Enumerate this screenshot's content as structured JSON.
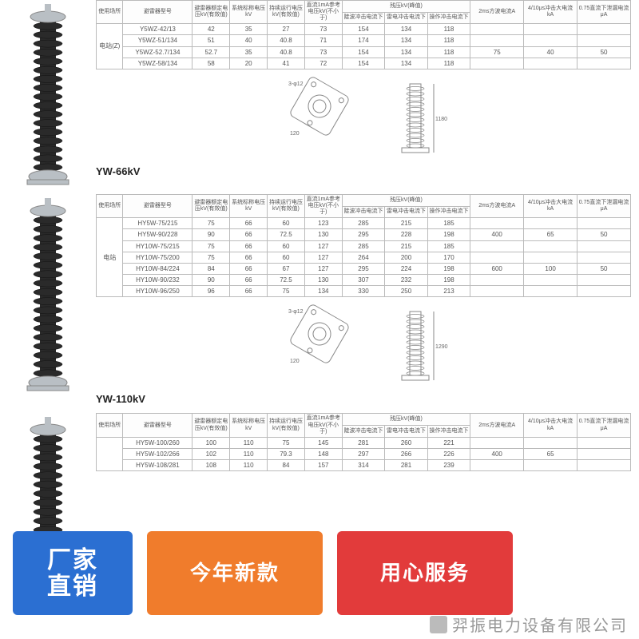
{
  "colors": {
    "badge_blue": "#2b6fd2",
    "badge_orange": "#f07c2c",
    "badge_red": "#e23b3b",
    "table_border": "#bbbbbb",
    "text_muted": "#555555",
    "footer_gray": "#999999",
    "arrester_body": "#2a2a2a",
    "arrester_metal": "#b9bfc4"
  },
  "badges": [
    {
      "l1": "厂家",
      "l2": "直销",
      "color_key": "badge_blue"
    },
    {
      "l1": "今年新款",
      "l2": "",
      "color_key": "badge_orange"
    },
    {
      "l1": "用心服务",
      "l2": "",
      "color_key": "badge_red"
    }
  ],
  "footer_company": "羿振电力设备有限公司",
  "sections": [
    {
      "label": "",
      "arrester_height": 230,
      "columns_super": [
        "使用场所",
        "避雷器型号",
        "避雷器额定电压kV(有效值)",
        "系统标称电压kV",
        "持续运行电压kV(有效值)",
        "直流1mA参考电压kV(不小于)",
        "残压kV(峰值)",
        "2ms方波电流A",
        "4/10μs冲击大电流kA",
        "0.75直流下泄漏电流μA"
      ],
      "columns_sub": [
        "",
        "",
        "",
        "",
        "",
        "",
        "陡波冲击电流下",
        "雷电冲击电流下",
        "操作冲击电流下",
        "",
        "",
        ""
      ],
      "group_label": "电站(Z)",
      "rows": [
        [
          "Y5WZ-42/13",
          "42",
          "35",
          "27",
          "73",
          "154",
          "134",
          "118",
          "",
          "",
          ""
        ],
        [
          "Y5WZ-51/134",
          "51",
          "40",
          "40.8",
          "71",
          "174",
          "134",
          "118",
          "",
          "",
          ""
        ],
        [
          "Y5WZ-52.7/134",
          "52.7",
          "35",
          "40.8",
          "73",
          "154",
          "134",
          "118",
          "75",
          "40",
          "50"
        ],
        [
          "Y5WZ-58/134",
          "58",
          "20",
          "41",
          "72",
          "154",
          "134",
          "118",
          "",
          "",
          ""
        ]
      ],
      "diagram": {
        "base_w": 120,
        "height_label": "1180",
        "base_label": "3-φ12"
      }
    },
    {
      "label": "YW-66kV",
      "arrester_height": 245,
      "columns_super": [
        "使用场所",
        "避雷器型号",
        "避雷器额定电压kV(有效值)",
        "系统标称电压kV",
        "持续运行电压kV(有效值)",
        "直流1mA参考电压kV(不小于)",
        "残压kV(峰值)",
        "2ms方波电流A",
        "4/10μs冲击大电流kA",
        "0.75直流下泄漏电流μA"
      ],
      "columns_sub": [
        "",
        "",
        "",
        "",
        "",
        "",
        "陡波冲击电流下",
        "雷电冲击电流下",
        "操作冲击电流下",
        "",
        "",
        ""
      ],
      "group_label": "电站",
      "rows": [
        [
          "HY5W-75/215",
          "75",
          "66",
          "60",
          "123",
          "285",
          "215",
          "185",
          "",
          "",
          ""
        ],
        [
          "HY5W-90/228",
          "90",
          "66",
          "72.5",
          "130",
          "295",
          "228",
          "198",
          "400",
          "65",
          "50"
        ],
        [
          "HY10W-75/215",
          "75",
          "66",
          "60",
          "127",
          "285",
          "215",
          "185",
          "",
          "",
          ""
        ],
        [
          "HY10W-75/200",
          "75",
          "66",
          "60",
          "127",
          "264",
          "200",
          "170",
          "",
          "",
          ""
        ],
        [
          "HY10W-84/224",
          "84",
          "66",
          "67",
          "127",
          "295",
          "224",
          "198",
          "600",
          "100",
          "50"
        ],
        [
          "HY10W-90/232",
          "90",
          "66",
          "72.5",
          "130",
          "307",
          "232",
          "198",
          "",
          "",
          ""
        ],
        [
          "HY10W-96/250",
          "96",
          "66",
          "75",
          "134",
          "330",
          "250",
          "213",
          "",
          "",
          ""
        ]
      ],
      "diagram": {
        "base_w": 120,
        "height_label": "1290",
        "base_label": "3-φ12"
      }
    },
    {
      "label": "YW-110kV",
      "arrester_height": 190,
      "columns_super": [
        "使用场所",
        "避雷器型号",
        "避雷器额定电压kV(有效值)",
        "系统标称电压kV",
        "持续运行电压kV(有效值)",
        "直流1mA参考电压kV(不小于)",
        "残压kV(峰值)",
        "2ms方波电流A",
        "4/10μs冲击大电流kA",
        "0.75直流下泄漏电流μA"
      ],
      "columns_sub": [
        "",
        "",
        "",
        "",
        "",
        "",
        "陡波冲击电流下",
        "雷电冲击电流下",
        "操作冲击电流下",
        "",
        "",
        ""
      ],
      "group_label": "",
      "rows": [
        [
          "HY5W-100/260",
          "100",
          "110",
          "75",
          "145",
          "281",
          "260",
          "221",
          "",
          "",
          ""
        ],
        [
          "HY5W-102/266",
          "102",
          "110",
          "79.3",
          "148",
          "297",
          "266",
          "226",
          "400",
          "65",
          ""
        ],
        [
          "HY5W-108/281",
          "108",
          "110",
          "84",
          "157",
          "314",
          "281",
          "239",
          "",
          "",
          ""
        ]
      ],
      "diagram": null
    }
  ]
}
